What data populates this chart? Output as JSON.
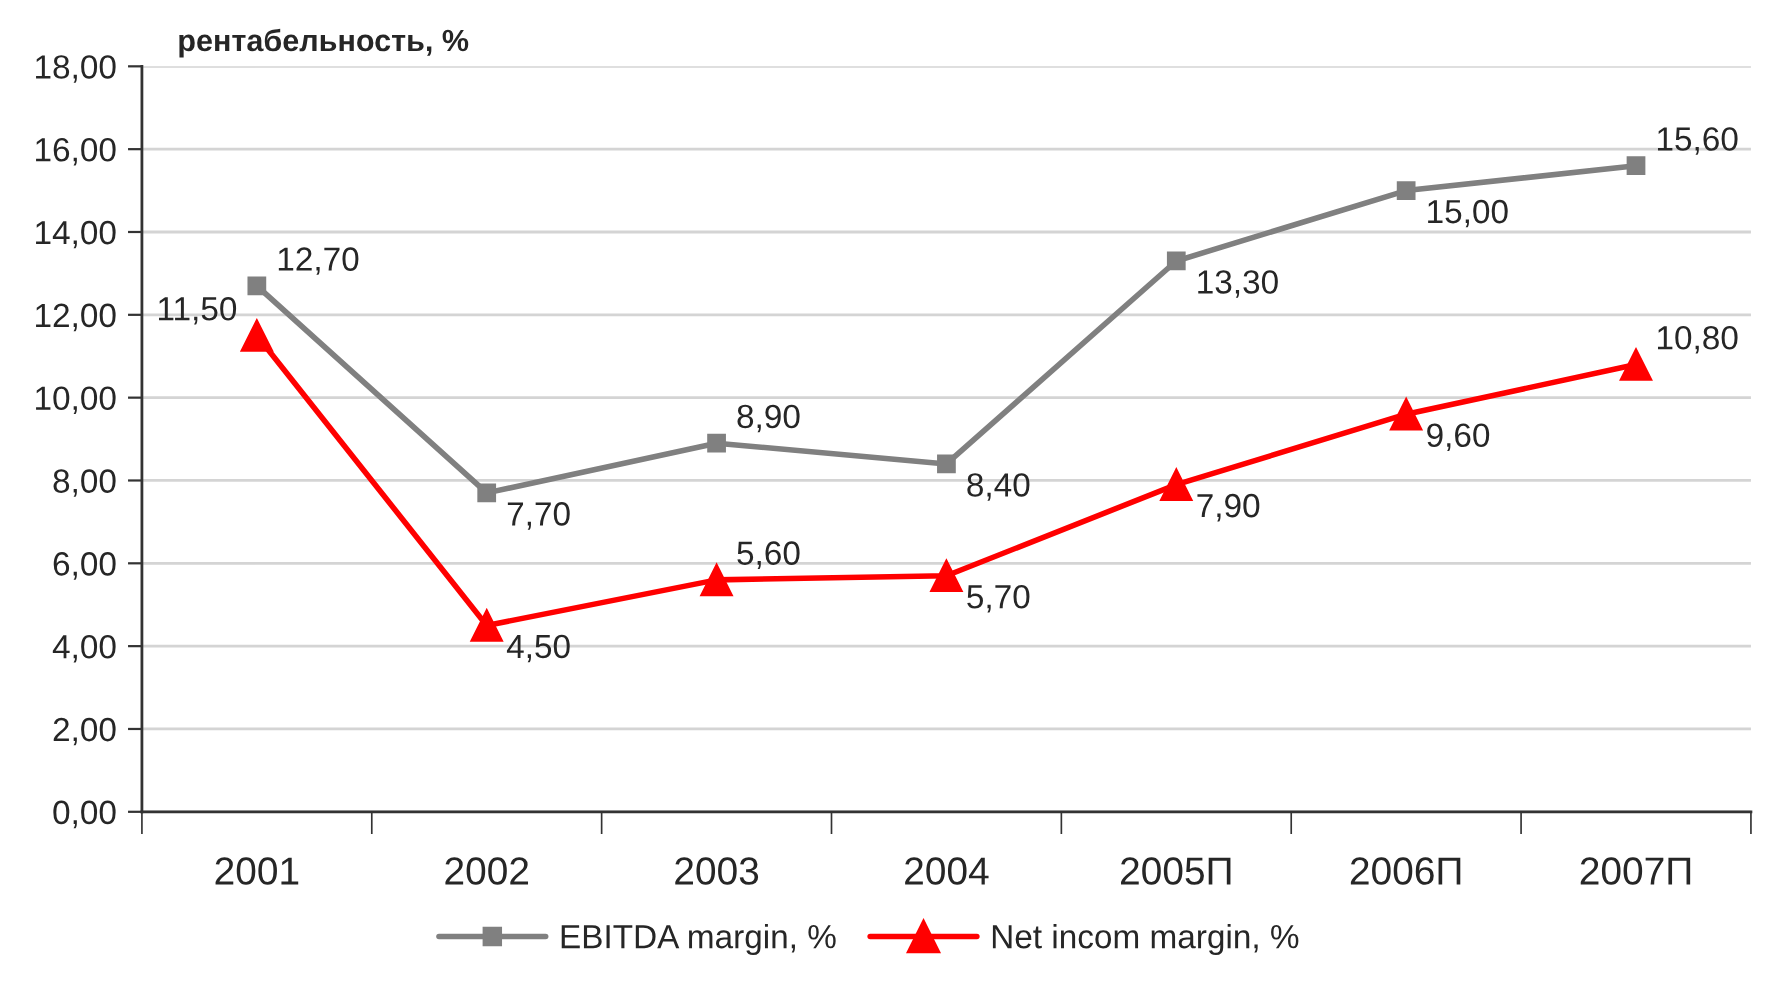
{
  "chart_data": {
    "type": "line",
    "ylabel": "рентабельность, %",
    "categories": [
      "2001",
      "2002",
      "2003",
      "2004",
      "2005П",
      "2006П",
      "2007П"
    ],
    "series": [
      {
        "name": "EBITDA margin, %",
        "color": "#808080",
        "marker": "square",
        "values": [
          12.7,
          7.7,
          8.9,
          8.4,
          13.3,
          15.0,
          15.6
        ],
        "value_labels": [
          "12,70",
          "7,70",
          "8,90",
          "8,40",
          "13,30",
          "15,00",
          "15,60"
        ]
      },
      {
        "name": "Net incom margin, %",
        "color": "#ff0000",
        "marker": "triangle",
        "values": [
          11.5,
          4.5,
          5.6,
          5.7,
          7.9,
          9.6,
          10.8
        ],
        "value_labels": [
          "11,50",
          "4,50",
          "5,60",
          "5,70",
          "7,90",
          "9,60",
          "10,80"
        ]
      }
    ],
    "ylim": [
      0,
      18
    ],
    "yticks": [
      {
        "value": 0,
        "label": "0,00"
      },
      {
        "value": 2,
        "label": "2,00"
      },
      {
        "value": 4,
        "label": "4,00"
      },
      {
        "value": 6,
        "label": "6,00"
      },
      {
        "value": 8,
        "label": "8,00"
      },
      {
        "value": 10,
        "label": "10,00"
      },
      {
        "value": 12,
        "label": "12,00"
      },
      {
        "value": 14,
        "label": "14,00"
      },
      {
        "value": 16,
        "label": "16,00"
      },
      {
        "value": 18,
        "label": "18,00"
      }
    ],
    "grid": "y",
    "legend": "bottom"
  }
}
